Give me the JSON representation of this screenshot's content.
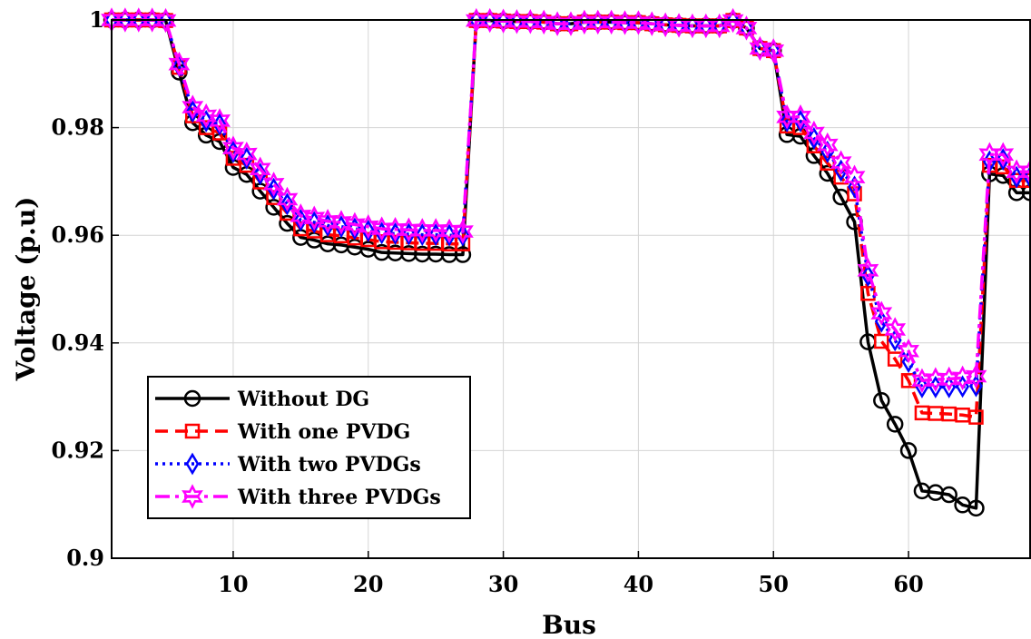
{
  "chart_data": {
    "type": "line",
    "title": "",
    "xlabel": "Bus",
    "ylabel": "Voltage (p.u)",
    "xlim": [
      1,
      69
    ],
    "ylim": [
      0.9,
      1.0
    ],
    "xticks": [
      10,
      20,
      30,
      40,
      50,
      60
    ],
    "yticks": [
      0.9,
      0.92,
      0.94,
      0.96,
      0.98,
      1.0
    ],
    "ytick_labels": [
      "0.9",
      "0.92",
      "0.94",
      "0.96",
      "0.98",
      "1"
    ],
    "grid": true,
    "legend_position": "bottom-left",
    "x": [
      1,
      2,
      3,
      4,
      5,
      6,
      7,
      8,
      9,
      10,
      11,
      12,
      13,
      14,
      15,
      16,
      17,
      18,
      19,
      20,
      21,
      22,
      23,
      24,
      25,
      26,
      27,
      28,
      29,
      30,
      31,
      32,
      33,
      34,
      35,
      36,
      37,
      38,
      39,
      40,
      41,
      42,
      43,
      44,
      45,
      46,
      47,
      48,
      49,
      50,
      51,
      52,
      53,
      54,
      55,
      56,
      57,
      58,
      59,
      60,
      61,
      62,
      63,
      64,
      65,
      66,
      67,
      68,
      69
    ],
    "series": [
      {
        "name": "Without DG",
        "color": "#000000",
        "line_style": "solid",
        "marker": "circle",
        "values": [
          1.0,
          1.0,
          1.0,
          1.0,
          0.9999,
          0.9903,
          0.9809,
          0.9786,
          0.9774,
          0.9726,
          0.9713,
          0.9682,
          0.9652,
          0.9622,
          0.9596,
          0.9591,
          0.9584,
          0.9582,
          0.9578,
          0.9574,
          0.9568,
          0.9567,
          0.9566,
          0.9565,
          0.9565,
          0.9564,
          0.9564,
          0.9999,
          0.9999,
          0.9998,
          0.9997,
          0.9997,
          0.9996,
          0.9993,
          0.9993,
          0.9996,
          0.9996,
          0.9996,
          0.9995,
          0.9995,
          0.9993,
          0.9991,
          0.999,
          0.9989,
          0.9989,
          0.9989,
          0.9999,
          0.9985,
          0.9947,
          0.9943,
          0.9787,
          0.9784,
          0.9748,
          0.9715,
          0.9671,
          0.9625,
          0.9402,
          0.9293,
          0.9249,
          0.92,
          0.9125,
          0.9122,
          0.9118,
          0.9099,
          0.9093,
          0.9714,
          0.9711,
          0.9679,
          0.9679
        ]
      },
      {
        "name": "With one PVDG",
        "color": "#ff0000",
        "line_style": "dashed",
        "marker": "square",
        "values": [
          1.0,
          1.0,
          1.0,
          1.0,
          0.9999,
          0.9912,
          0.9822,
          0.98,
          0.979,
          0.9743,
          0.973,
          0.9699,
          0.967,
          0.9641,
          0.9612,
          0.9608,
          0.9601,
          0.9599,
          0.9595,
          0.9592,
          0.9588,
          0.9587,
          0.9586,
          0.9585,
          0.9585,
          0.9584,
          0.9584,
          0.9999,
          0.9999,
          0.9998,
          0.9997,
          0.9997,
          0.9996,
          0.9993,
          0.9993,
          0.9996,
          0.9996,
          0.9996,
          0.9995,
          0.9995,
          0.9993,
          0.9991,
          0.999,
          0.9989,
          0.9989,
          0.9989,
          0.9999,
          0.9985,
          0.9947,
          0.9943,
          0.9803,
          0.98,
          0.9766,
          0.9734,
          0.9708,
          0.9677,
          0.9492,
          0.9403,
          0.937,
          0.933,
          0.927,
          0.9269,
          0.9268,
          0.9266,
          0.9262,
          0.973,
          0.9727,
          0.9702,
          0.9702
        ]
      },
      {
        "name": "With two PVDGs",
        "color": "#0000ff",
        "line_style": "dotted",
        "marker": "diamond",
        "values": [
          1.0,
          1.0,
          1.0,
          1.0,
          0.9999,
          0.9915,
          0.983,
          0.9812,
          0.9806,
          0.9755,
          0.9743,
          0.9714,
          0.9686,
          0.9658,
          0.9628,
          0.9624,
          0.9618,
          0.9616,
          0.9612,
          0.9608,
          0.9604,
          0.9603,
          0.9602,
          0.9601,
          0.9601,
          0.96,
          0.96,
          0.9999,
          0.9999,
          0.9998,
          0.9997,
          0.9997,
          0.9996,
          0.9993,
          0.9993,
          0.9996,
          0.9996,
          0.9996,
          0.9995,
          0.9995,
          0.9993,
          0.9991,
          0.999,
          0.9989,
          0.9989,
          0.9989,
          0.9999,
          0.9985,
          0.9947,
          0.9943,
          0.9812,
          0.9812,
          0.978,
          0.9755,
          0.972,
          0.969,
          0.9525,
          0.944,
          0.9405,
          0.9365,
          0.9318,
          0.9318,
          0.9318,
          0.9319,
          0.932,
          0.9737,
          0.9741,
          0.9708,
          0.9708
        ]
      },
      {
        "name": "With three PVDGs",
        "color": "#ff00ff",
        "line_style": "dashdot",
        "marker": "star",
        "values": [
          1.0,
          1.0,
          1.0,
          1.0,
          0.9999,
          0.9918,
          0.9838,
          0.9822,
          0.9813,
          0.9762,
          0.9751,
          0.9723,
          0.9695,
          0.9667,
          0.9636,
          0.9632,
          0.9626,
          0.9624,
          0.962,
          0.9616,
          0.9612,
          0.9611,
          0.961,
          0.9609,
          0.9609,
          0.9608,
          0.9607,
          0.9999,
          0.9999,
          0.9998,
          0.9997,
          0.9997,
          0.9996,
          0.9993,
          0.9993,
          0.9996,
          0.9996,
          0.9996,
          0.9995,
          0.9995,
          0.9993,
          0.9991,
          0.999,
          0.9989,
          0.9989,
          0.9989,
          0.9999,
          0.9985,
          0.9947,
          0.9943,
          0.982,
          0.982,
          0.979,
          0.9768,
          0.9735,
          0.9708,
          0.9535,
          0.9455,
          0.9425,
          0.9385,
          0.933,
          0.9332,
          0.9333,
          0.9335,
          0.9338,
          0.975,
          0.975,
          0.9718,
          0.9718
        ]
      }
    ]
  }
}
